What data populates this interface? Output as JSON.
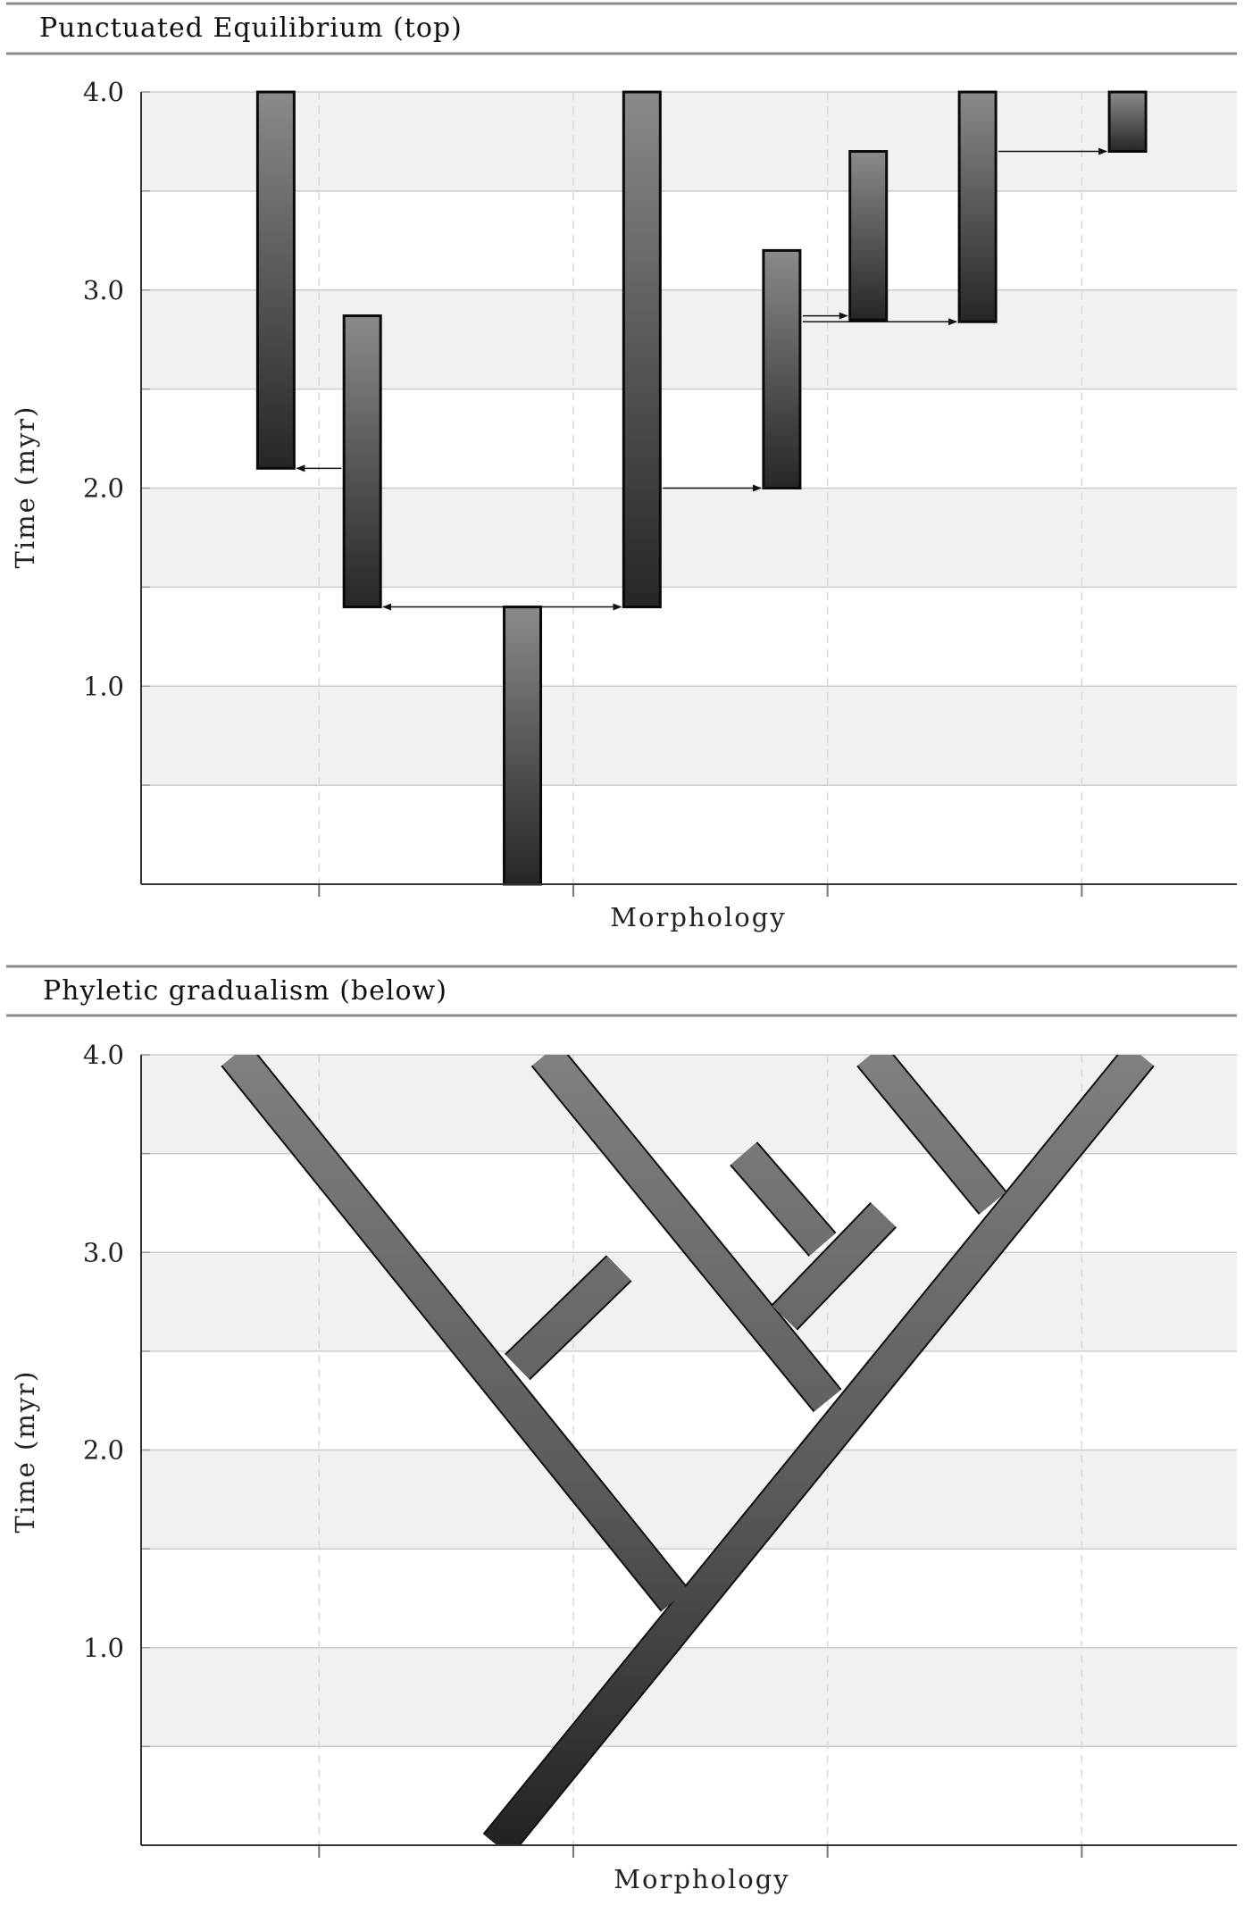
{
  "chart_data": [
    {
      "type": "bar",
      "title": "Punctuated Equilibrium (top)",
      "xlabel": "Morphology",
      "ylabel": "Time (myr)",
      "ylim": [
        0,
        4.0
      ],
      "xlim": [
        0.3,
        4.61
      ],
      "yticks": [
        "1.0",
        "2.0",
        "3.0",
        "4.0"
      ],
      "grid": true,
      "bar_width": 0.144,
      "bars": [
        {
          "x": 0.83,
          "start": 2.1,
          "end": 4.0
        },
        {
          "x": 1.17,
          "start": 1.4,
          "end": 2.87
        },
        {
          "x": 1.8,
          "start": 0.0,
          "end": 1.4
        },
        {
          "x": 2.27,
          "start": 1.4,
          "end": 4.0
        },
        {
          "x": 2.82,
          "start": 2.0,
          "end": 3.2
        },
        {
          "x": 3.16,
          "start": 2.85,
          "end": 3.7
        },
        {
          "x": 3.59,
          "start": 2.84,
          "end": 4.0
        },
        {
          "x": 4.18,
          "start": 3.7,
          "end": 4.0
        }
      ],
      "arrows": [
        {
          "from": 1,
          "to": 0,
          "time": 2.1,
          "both": false
        },
        {
          "from": 1,
          "to": 3,
          "time": 1.4,
          "both": true
        },
        {
          "from": 3,
          "to": 4,
          "time": 2.0,
          "both": false
        },
        {
          "from": 4,
          "to": 5,
          "time": 2.87,
          "both": false
        },
        {
          "from": 4,
          "to": 6,
          "time": 2.84,
          "both": false
        },
        {
          "from": 6,
          "to": 7,
          "time": 3.7,
          "both": false
        }
      ]
    },
    {
      "type": "line",
      "title": "Phyletic gradualism (below)",
      "xlabel": "Morphology",
      "ylabel": "Time (myr)",
      "ylim": [
        0,
        4.0
      ],
      "xlim": [
        0.3,
        4.61
      ],
      "yticks": [
        "1.0",
        "2.0",
        "3.0",
        "4.0"
      ],
      "grid": true,
      "branches": [
        {
          "x": [
            1.7,
            4.23
          ],
          "t": [
            0.0,
            4.0
          ]
        },
        {
          "x": [
            2.4,
            0.67
          ],
          "t": [
            1.24,
            4.0
          ]
        },
        {
          "x": [
            1.78,
            2.18
          ],
          "t": [
            2.42,
            2.92
          ]
        },
        {
          "x": [
            3.0,
            1.89
          ],
          "t": [
            2.25,
            4.0
          ]
        },
        {
          "x": [
            2.83,
            3.22
          ],
          "t": [
            2.67,
            3.19
          ]
        },
        {
          "x": [
            2.98,
            2.67
          ],
          "t": [
            3.04,
            3.5
          ]
        },
        {
          "x": [
            3.65,
            3.17
          ],
          "t": [
            3.25,
            4.0
          ]
        }
      ]
    }
  ],
  "colors": {
    "band": "#f1f1f1",
    "gridline": "#cccccc",
    "bar_top": "#8a8a8a",
    "bar_bottom": "#262626",
    "header_rule": "#8c8c8c"
  }
}
